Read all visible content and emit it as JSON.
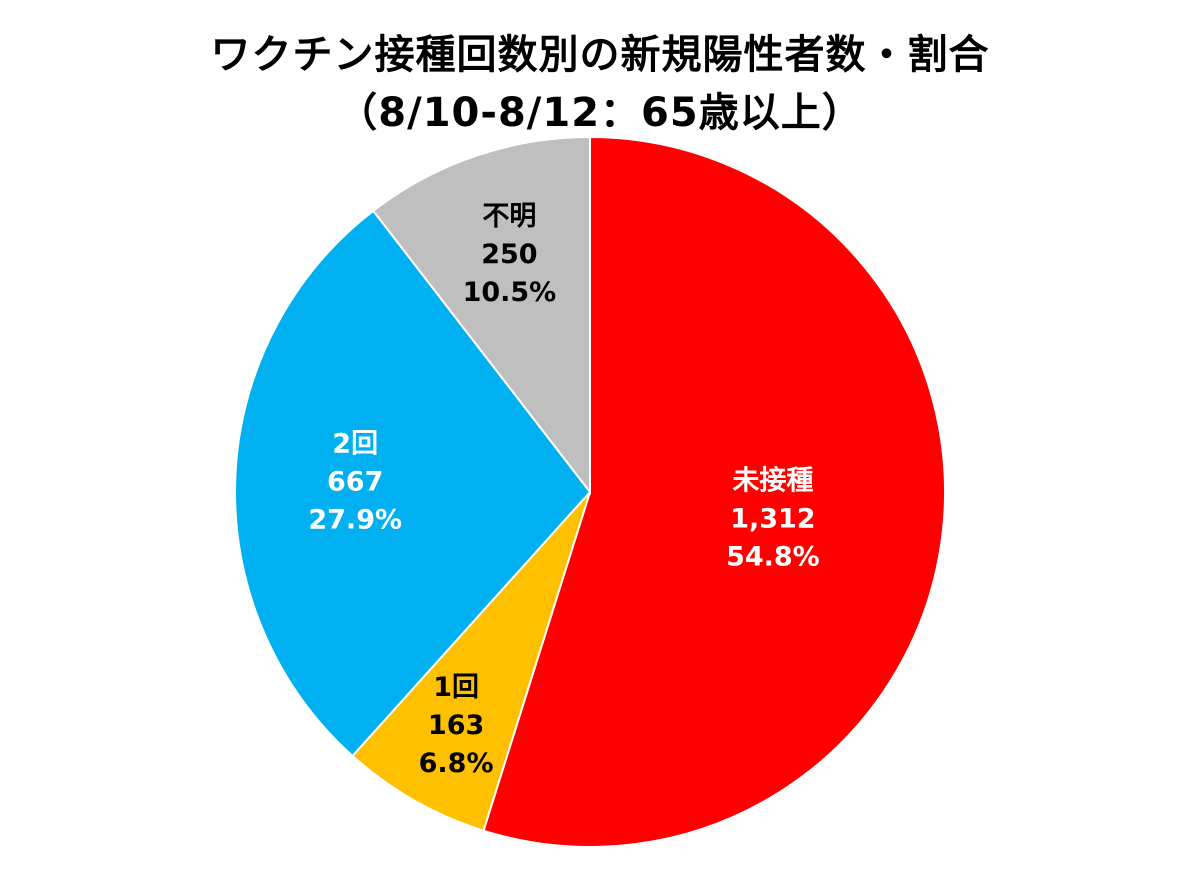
{
  "chart_data": {
    "type": "pie",
    "title": "ワクチン接種回数別の新規陽性者数・割合",
    "subtitle": "（8/10-8/12：65歳以上）",
    "slices": [
      {
        "label": "未接種",
        "count": "1,312",
        "value": 1312,
        "percent": "54.8%",
        "pct": 54.8,
        "color": "#ff0000",
        "text_color": "#ffffff"
      },
      {
        "label": "1回",
        "count": "163",
        "value": 163,
        "percent": "6.8%",
        "pct": 6.8,
        "color": "#ffc000",
        "text_color": "#000000"
      },
      {
        "label": "2回",
        "count": "667",
        "value": 667,
        "percent": "27.9%",
        "pct": 27.9,
        "color": "#00b0f0",
        "text_color": "#ffffff"
      },
      {
        "label": "不明",
        "count": "250",
        "value": 250,
        "percent": "10.5%",
        "pct": 10.5,
        "color": "#bfbfbf",
        "text_color": "#000000"
      }
    ],
    "start": "12 o'clock",
    "direction": "clockwise",
    "legend": "none"
  }
}
